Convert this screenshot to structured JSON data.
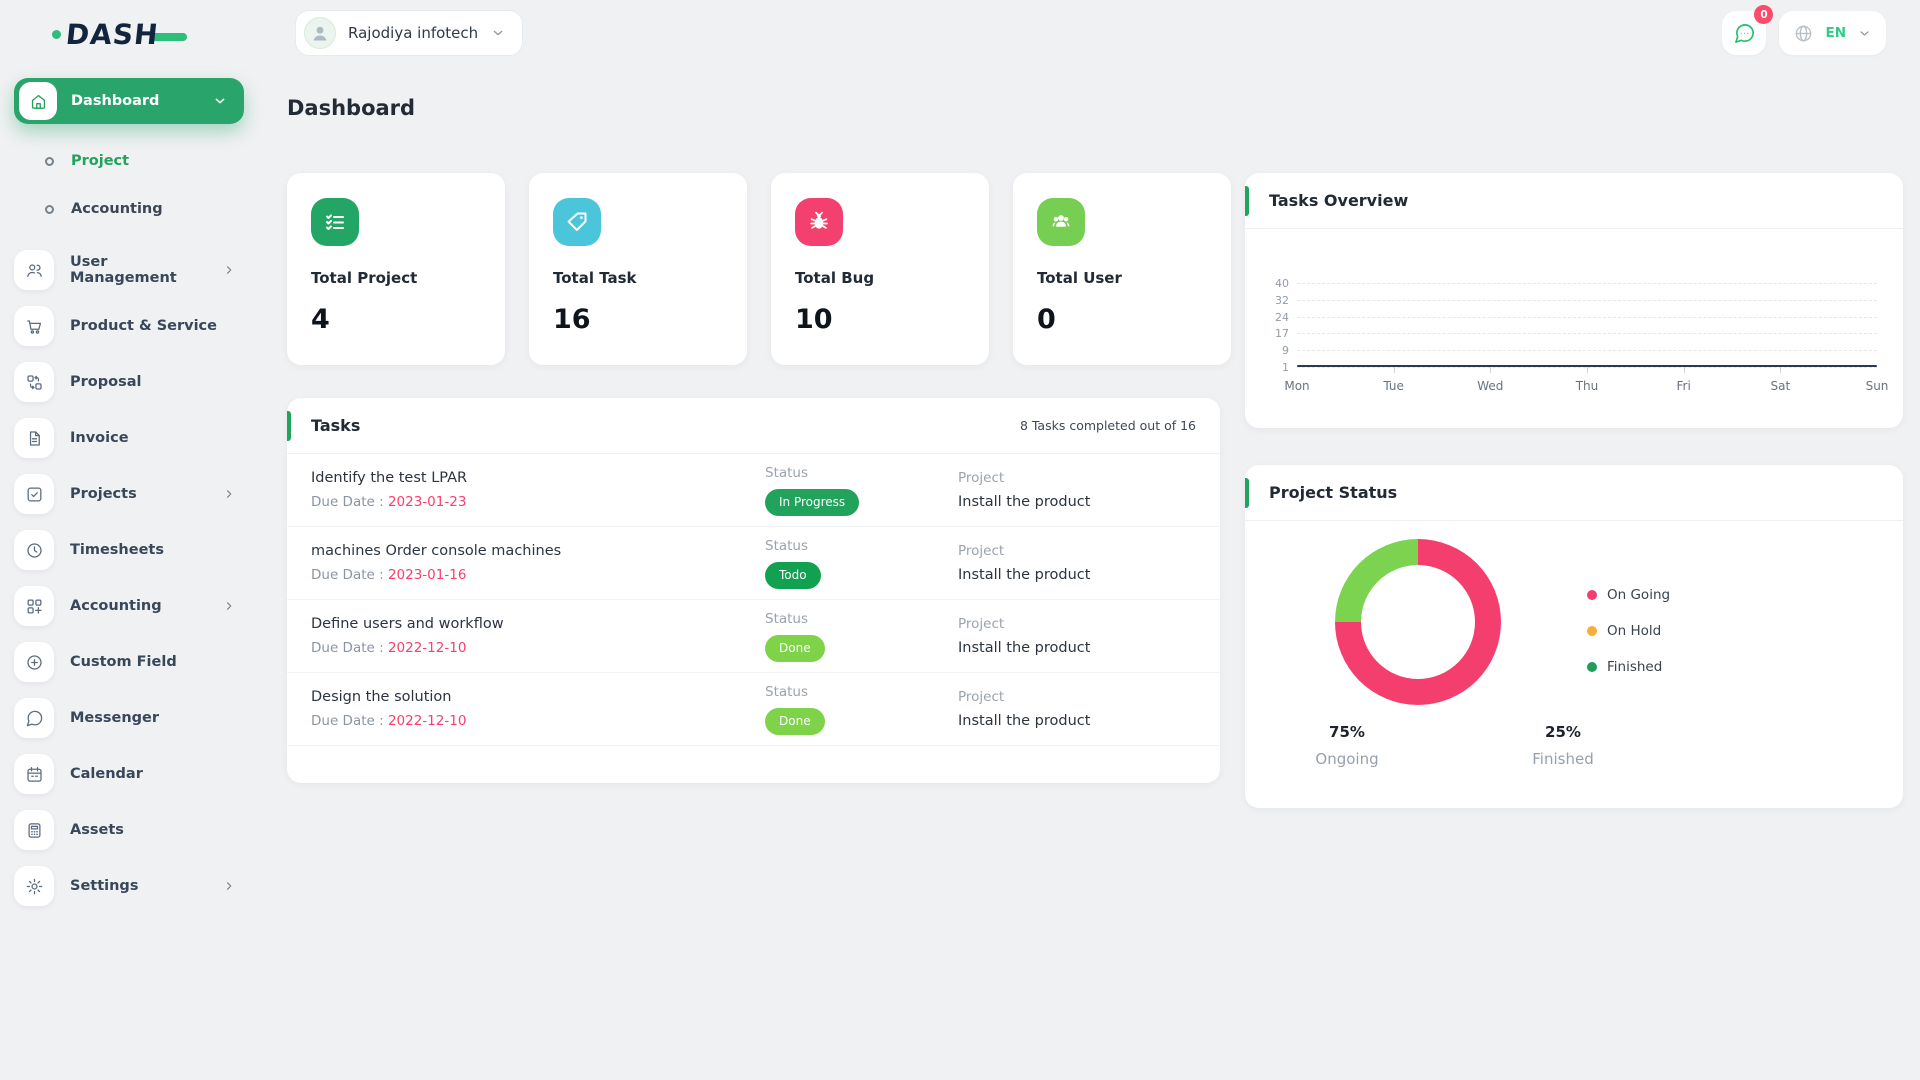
{
  "chart_data": [
    {
      "id": "tasks_overview",
      "type": "line",
      "title": "Tasks Overview",
      "x": [
        "Mon",
        "Tue",
        "Wed",
        "Thu",
        "Fri",
        "Sat",
        "Sun"
      ],
      "series": [
        {
          "name": "Tasks",
          "values": [
            1,
            1,
            1,
            1,
            1,
            1,
            1
          ]
        }
      ],
      "yticks": [
        40,
        32,
        24,
        17,
        9,
        1
      ],
      "ylim": [
        1,
        40
      ],
      "grid": "dashed-horizontal",
      "legend_position": "none",
      "line_color": "#2b3950"
    },
    {
      "id": "project_status",
      "type": "pie",
      "donut": true,
      "title": "Project Status",
      "labels": [
        "On Going",
        "On Hold",
        "Finished"
      ],
      "values": [
        75,
        0,
        25
      ],
      "colors": [
        "#f43f6e",
        "#f9ab3c",
        "#7bd34f"
      ],
      "legend_position": "right"
    }
  ],
  "brand": {
    "name": "DASH",
    "navy": "#13253e",
    "green": "#2dbe7c"
  },
  "header": {
    "company": {
      "name": "Rajodiya infotech"
    },
    "chat": {
      "badge": "0",
      "icon": "chat-bubble-icon"
    },
    "language": {
      "code": "EN",
      "icon": "globe-icon"
    }
  },
  "page": {
    "title": "Dashboard"
  },
  "sidebar": {
    "items": [
      {
        "label": "Dashboard",
        "icon": "home-icon",
        "active": true,
        "expanded": true
      },
      {
        "label": "Project",
        "sub": true,
        "active": true
      },
      {
        "label": "Accounting",
        "sub": true
      },
      {
        "label": "User Management",
        "icon": "users-icon",
        "chevron": true
      },
      {
        "label": "Product & Service",
        "icon": "cart-icon"
      },
      {
        "label": "Proposal",
        "icon": "swap-icon"
      },
      {
        "label": "Invoice",
        "icon": "document-icon"
      },
      {
        "label": "Projects",
        "icon": "check-square-icon",
        "chevron": true
      },
      {
        "label": "Timesheets",
        "icon": "clock-icon"
      },
      {
        "label": "Accounting",
        "icon": "grid-plus-icon",
        "chevron": true
      },
      {
        "label": "Custom Field",
        "icon": "circle-plus-icon"
      },
      {
        "label": "Messenger",
        "icon": "chat-icon"
      },
      {
        "label": "Calendar",
        "icon": "calendar-icon"
      },
      {
        "label": "Assets",
        "icon": "calculator-icon"
      },
      {
        "label": "Settings",
        "icon": "gear-icon",
        "chevron": true
      }
    ]
  },
  "stats": [
    {
      "label": "Total Project",
      "value": "4",
      "icon": "checklist-icon",
      "color": "#23a566"
    },
    {
      "label": "Total Task",
      "value": "16",
      "icon": "tag-icon",
      "color": "#4bc5d9"
    },
    {
      "label": "Total Bug",
      "value": "10",
      "icon": "bug-icon",
      "color": "#f4406e"
    },
    {
      "label": "Total User",
      "value": "0",
      "icon": "users-group-icon",
      "color": "#76ce52"
    }
  ],
  "tasks": {
    "title": "Tasks",
    "summary": "8 Tasks completed out of 16",
    "due_label": "Due Date :",
    "status_label": "Status",
    "project_label": "Project",
    "rows": [
      {
        "name": "Identify the test LPAR",
        "due": "2023-01-23",
        "status": "In Progress",
        "status_color": "#21a35b",
        "project": "Install the product"
      },
      {
        "name": "machines Order console machines",
        "due": "2023-01-16",
        "status": "Todo",
        "status_color": "#12a151",
        "project": "Install the product"
      },
      {
        "name": "Define users and workflow",
        "due": "2022-12-10",
        "status": "Done",
        "status_color": "#7ed348",
        "project": "Install the product"
      },
      {
        "name": "Design the solution",
        "due": "2022-12-10",
        "status": "Done",
        "status_color": "#7ed348",
        "project": "Install the product"
      }
    ]
  },
  "project_status": {
    "title": "Project Status",
    "legend": [
      {
        "label": "On Going",
        "color": "#f43f6e"
      },
      {
        "label": "On Hold",
        "color": "#f9ab3c"
      },
      {
        "label": "Finished",
        "color": "#1f9e5a"
      }
    ],
    "stats": [
      {
        "percent": "75%",
        "label": "Ongoing"
      },
      {
        "percent": "25%",
        "label": "Finished"
      }
    ]
  }
}
